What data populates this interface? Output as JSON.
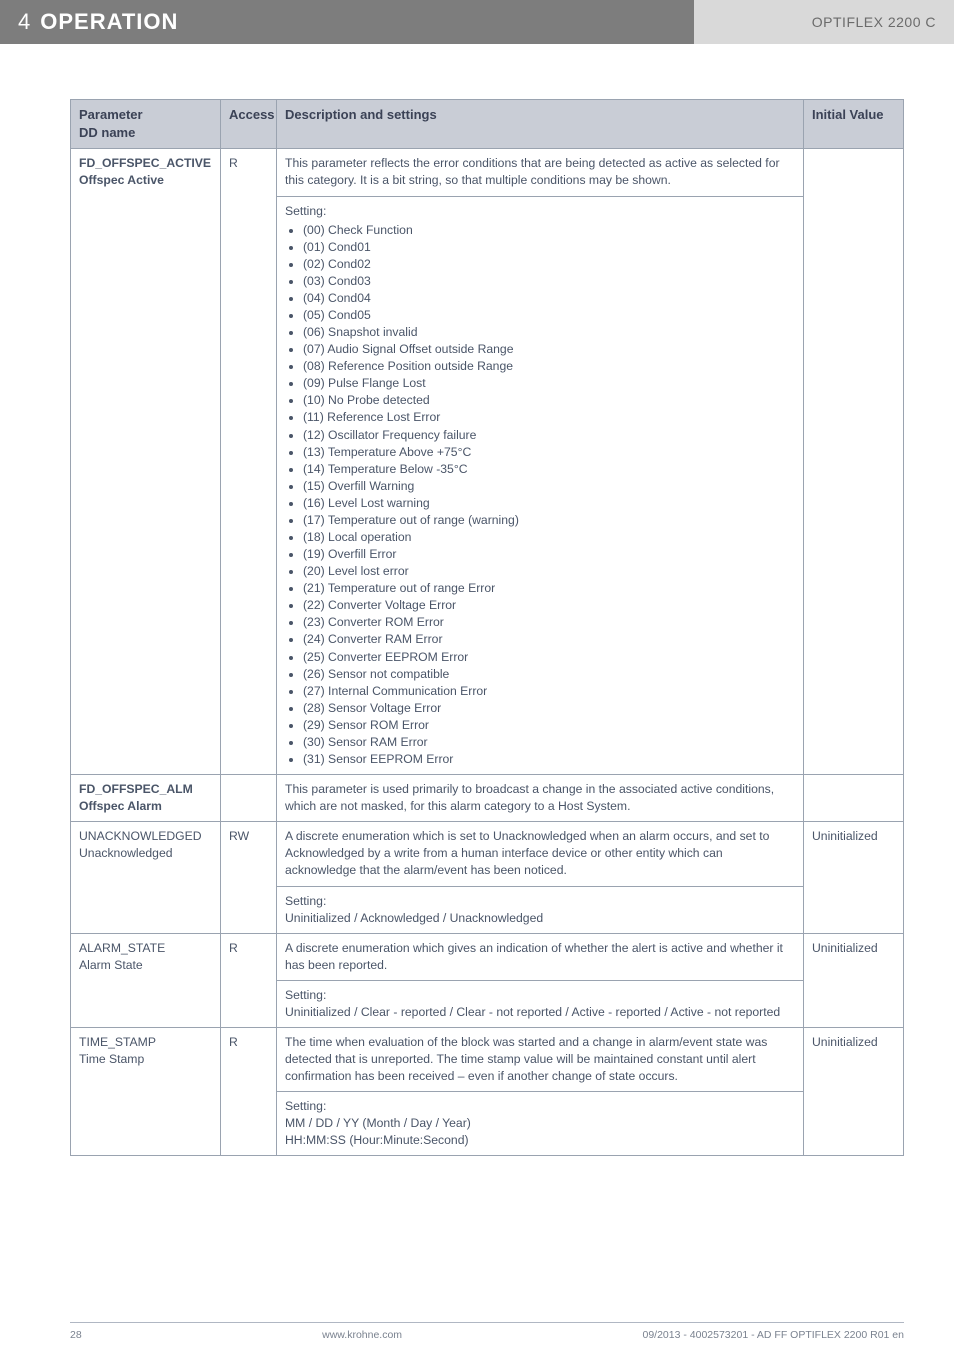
{
  "header": {
    "section_number": "4",
    "section_title": "OPERATION",
    "product": "OPTIFLEX 2200 C"
  },
  "table": {
    "columns": {
      "param": "Parameter",
      "dd": "DD name",
      "access": "Access",
      "desc": "Description and settings",
      "init": "Initial Value"
    },
    "rows": [
      {
        "param": "FD_OFFSPEC_ACTIVE",
        "dd": "Offspec Active",
        "access": "R",
        "desc": "This parameter reflects the error conditions that are being detected as active as selected for this category. It is a bit string, so that multiple conditions may be shown.",
        "setting_label": "Setting:",
        "settings": [
          "(00) Check Function",
          "(01) Cond01",
          "(02) Cond02",
          "(03) Cond03",
          "(04) Cond04",
          "(05) Cond05",
          "(06) Snapshot invalid",
          "(07) Audio Signal Offset outside Range",
          "(08) Reference Position outside Range",
          "(09) Pulse Flange Lost",
          "(10) No Probe detected",
          "(11) Reference Lost Error",
          "(12) Oscillator Frequency failure",
          "(13) Temperature Above +75°C",
          "(14) Temperature Below -35°C",
          "(15) Overfill Warning",
          "(16) Level Lost warning",
          "(17) Temperature out of range (warning)",
          "(18) Local operation",
          "(19) Overfill Error",
          "(20) Level lost error",
          "(21) Temperature out of range Error",
          "(22) Converter Voltage Error",
          "(23) Converter ROM Error",
          "(24) Converter RAM Error",
          "(25) Converter EEPROM Error",
          "(26) Sensor not compatible",
          "(27) Internal Communication Error",
          "(28) Sensor Voltage Error",
          "(29) Sensor ROM Error",
          "(30) Sensor RAM Error",
          "(31) Sensor EEPROM Error"
        ],
        "init": ""
      },
      {
        "param": "FD_OFFSPEC_ALM",
        "dd": "Offspec Alarm",
        "access": "",
        "desc": "This parameter is used primarily to broadcast a change in the associated active conditions, which are not masked, for this alarm category to a Host System.",
        "init": ""
      },
      {
        "param": "UNACKNOWLEDGED",
        "dd": "Unacknowledged",
        "access": "RW",
        "desc": "A discrete enumeration which is set to Unacknowledged when an alarm occurs, and set to Acknowledged by a write from a human interface device or other entity which can acknowledge that the alarm/event has been noticed.",
        "setting_label": "Setting:",
        "setting_text": "Uninitialized / Acknowledged / Unacknowledged",
        "init": "Uninitialized"
      },
      {
        "param": "ALARM_STATE",
        "dd": "Alarm State",
        "access": "R",
        "desc": "A discrete enumeration which gives an indication of whether the alert is active and whether it has been reported.",
        "setting_label": "Setting:",
        "setting_text": "Uninitialized / Clear - reported / Clear - not reported / Active - reported / Active - not reported",
        "init": "Uninitialized"
      },
      {
        "param": "TIME_STAMP",
        "dd": "Time Stamp",
        "access": "R",
        "desc": "The time when evaluation of the block was started and a change in alarm/event state was detected that is unreported. The time stamp value will be maintained constant until alert confirmation has been received – even if another change of state occurs.",
        "setting_label": "Setting:",
        "setting_text": "MM / DD / YY (Month / Day / Year)\nHH:MM:SS (Hour:Minute:Second)",
        "init": "Uninitialized"
      }
    ]
  },
  "footer": {
    "page": "28",
    "site": "www.krohne.com",
    "doc": "09/2013 - 4002573201 - AD FF OPTIFLEX 2200 R01 en"
  }
}
